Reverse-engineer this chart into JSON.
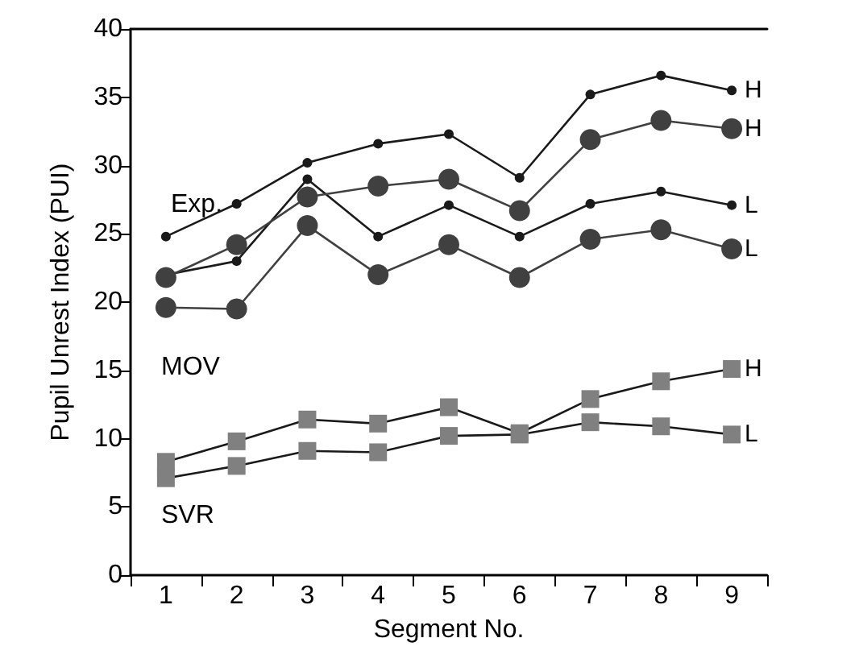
{
  "chart_data": {
    "type": "line",
    "xlabel": "Segment No.",
    "ylabel": "Pupil Unrest Index (PUI)",
    "categories": [
      "1",
      "2",
      "3",
      "4",
      "5",
      "6",
      "7",
      "8",
      "9"
    ],
    "series": [
      {
        "name": "H",
        "color": "#1a1a1a",
        "marker": "circle",
        "values": [
          24.8,
          27.2,
          30.2,
          31.6,
          32.3,
          29.1,
          35.2,
          36.6,
          35.5
        ]
      },
      {
        "name": "L",
        "color": "#1a1a1a",
        "marker": "circle",
        "values": [
          22,
          23,
          29,
          24.8,
          27.1,
          24.8,
          27.2,
          28.1,
          27.1
        ]
      },
      {
        "name": "H",
        "color": "#404040",
        "marker": "circle",
        "values": [
          21.8,
          24.2,
          27.7,
          28.5,
          29,
          26.7,
          31.9,
          33.3,
          32.7
        ]
      },
      {
        "name": "L",
        "color": "#404040",
        "marker": "circle",
        "values": [
          19.6,
          19.5,
          25.6,
          22,
          24.2,
          21.8,
          24.6,
          25.3,
          23.9
        ]
      },
      {
        "name": "H",
        "color": "#808080",
        "marker": "square",
        "values": [
          8.3,
          9.8,
          11.4,
          11.1,
          12.3,
          10.4,
          12.9,
          14.2,
          15.1
        ]
      },
      {
        "name": "L",
        "color": "#808080",
        "marker": "square",
        "values": [
          7.1,
          8,
          9.1,
          9,
          10.2,
          10.3,
          11.2,
          10.9,
          10.3
        ]
      }
    ],
    "ylim": [
      0,
      40
    ],
    "yticks": [
      0,
      5,
      10,
      15,
      20,
      25,
      30,
      35,
      40
    ],
    "grid": false,
    "legend": false,
    "annotations": [
      "Exp.",
      "MOV",
      "SVR"
    ]
  }
}
